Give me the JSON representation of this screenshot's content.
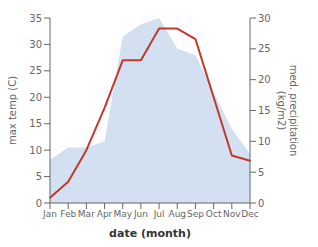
{
  "chart_data": {
    "type": "line",
    "categories": [
      "Jan",
      "Feb",
      "Mar",
      "Apr",
      "May",
      "Jun",
      "Jul",
      "Aug",
      "Sep",
      "Oct",
      "Nov",
      "Dec"
    ],
    "xlabel": "date (month)",
    "ylabel": "max temp (C)",
    "y2label": "med. precipitation\n(kg/m2)",
    "ylim": [
      0,
      35
    ],
    "yticks": [
      0,
      5,
      10,
      15,
      20,
      25,
      30,
      35
    ],
    "y2lim": [
      0,
      30
    ],
    "y2ticks": [
      0,
      5,
      10,
      15,
      20,
      25,
      30
    ],
    "series": [
      {
        "type": "area",
        "axis": "y2",
        "color": "#aec6e8",
        "values": [
          7,
          9,
          9,
          10,
          27,
          29,
          30,
          25,
          24,
          18,
          12,
          8
        ]
      },
      {
        "type": "line",
        "color": "#c0392b",
        "values": [
          1,
          4,
          10,
          18,
          27,
          27,
          33,
          33,
          31,
          20,
          9,
          8
        ]
      }
    ]
  }
}
